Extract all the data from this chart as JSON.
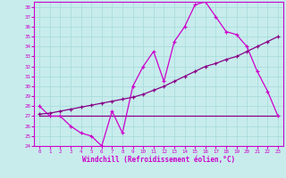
{
  "xlabel": "Windchill (Refroidissement éolien,°C)",
  "bg_color": "#c8ecec",
  "line_color_bright": "#cc00cc",
  "line_color_dark": "#880088",
  "grid_color": "#aadddd",
  "xlim": [
    -0.5,
    23.5
  ],
  "ylim": [
    24,
    38.5
  ],
  "yticks": [
    24,
    25,
    26,
    27,
    28,
    29,
    30,
    31,
    32,
    33,
    34,
    35,
    36,
    37,
    38
  ],
  "xticks": [
    0,
    1,
    2,
    3,
    4,
    5,
    6,
    7,
    8,
    9,
    10,
    11,
    12,
    13,
    14,
    15,
    16,
    17,
    18,
    19,
    20,
    21,
    22,
    23
  ],
  "curve1_x": [
    0,
    1,
    2,
    3,
    4,
    5,
    6,
    7,
    8,
    9,
    10,
    11,
    12,
    13,
    14,
    15,
    16,
    17,
    18,
    19,
    20,
    21,
    22,
    23
  ],
  "curve1_y": [
    28.0,
    27.0,
    27.0,
    26.0,
    25.3,
    25.0,
    24.0,
    27.5,
    25.3,
    30.0,
    32.0,
    33.5,
    30.5,
    34.5,
    36.0,
    38.2,
    38.5,
    37.0,
    35.5,
    35.2,
    34.0,
    31.5,
    29.5,
    27.0
  ],
  "curve2_x": [
    0,
    1,
    2,
    3,
    4,
    5,
    6,
    7,
    8,
    9,
    10,
    11,
    12,
    13,
    14,
    15,
    16,
    17,
    18,
    19,
    20,
    21,
    22,
    23
  ],
  "curve2_y": [
    27.2,
    27.3,
    27.5,
    27.7,
    27.9,
    28.1,
    28.3,
    28.5,
    28.7,
    28.9,
    29.2,
    29.6,
    30.0,
    30.5,
    31.0,
    31.5,
    32.0,
    32.3,
    32.7,
    33.0,
    33.5,
    34.0,
    34.5,
    35.0
  ],
  "curve3_x": [
    0,
    1,
    2,
    3,
    4,
    5,
    6,
    7,
    8,
    9,
    10,
    11,
    12,
    13,
    14,
    15,
    16,
    17,
    18,
    19,
    20,
    21,
    22,
    23
  ],
  "curve3_y": [
    27.0,
    27.0,
    27.0,
    27.0,
    27.0,
    27.0,
    27.0,
    27.0,
    27.0,
    27.0,
    27.0,
    27.0,
    27.0,
    27.0,
    27.0,
    27.0,
    27.0,
    27.0,
    27.0,
    27.0,
    27.0,
    27.0,
    27.0,
    27.0
  ]
}
